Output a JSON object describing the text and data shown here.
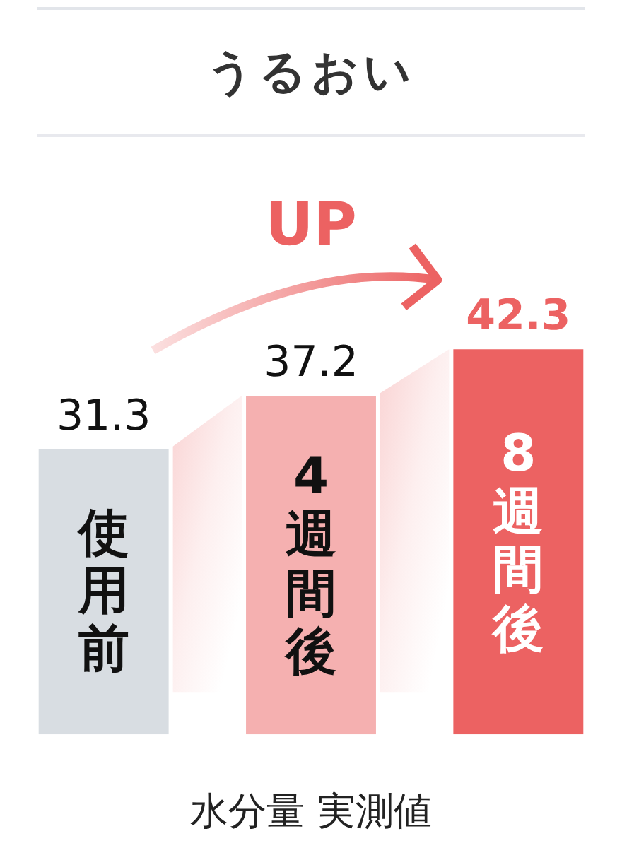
{
  "chart_data": {
    "type": "bar",
    "title": "うるおい",
    "xlabel": "水分量 実測値",
    "categories": [
      "使用前",
      "4週間後",
      "8週間後"
    ],
    "values": [
      31.3,
      37.2,
      42.3
    ],
    "colors": [
      "#d8dde2",
      "#f5b0b0",
      "#ec6262"
    ],
    "data_labels": true,
    "tick_labels": "x",
    "annotations": [
      "UP"
    ]
  }
}
